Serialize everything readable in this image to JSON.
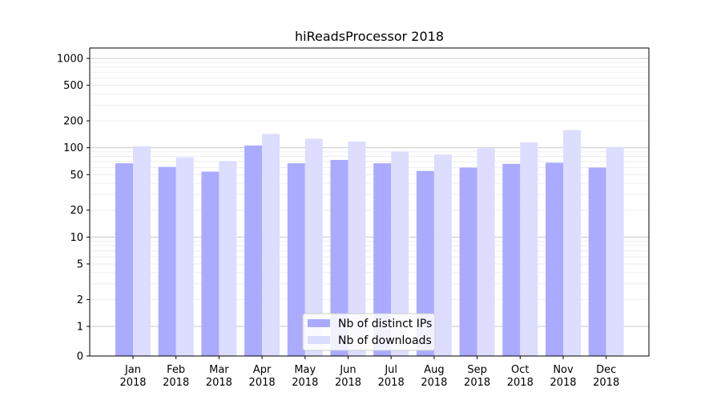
{
  "chart_data": {
    "type": "bar",
    "title": "hiReadsProcessor 2018",
    "xlabel": "",
    "ylabel": "",
    "y_scale": "symlog",
    "ylim": [
      0,
      1200
    ],
    "categories": [
      [
        "Jan",
        "2018"
      ],
      [
        "Feb",
        "2018"
      ],
      [
        "Mar",
        "2018"
      ],
      [
        "Apr",
        "2018"
      ],
      [
        "May",
        "2018"
      ],
      [
        "Jun",
        "2018"
      ],
      [
        "Jul",
        "2018"
      ],
      [
        "Aug",
        "2018"
      ],
      [
        "Sep",
        "2018"
      ],
      [
        "Oct",
        "2018"
      ],
      [
        "Nov",
        "2018"
      ],
      [
        "Dec",
        "2018"
      ]
    ],
    "y_ticks": [
      0,
      1,
      2,
      5,
      10,
      20,
      50,
      100,
      200,
      500,
      1000
    ],
    "y_tick_labels": [
      "0",
      "1",
      "2",
      "5",
      "10",
      "20",
      "50",
      "100",
      "200",
      "500",
      "1000"
    ],
    "series": [
      {
        "name": "Nb of distinct IPs",
        "color": "#aaaaff",
        "values": [
          67,
          61,
          54,
          106,
          67,
          73,
          67,
          55,
          60,
          66,
          68,
          60
        ]
      },
      {
        "name": "Nb of downloads",
        "color": "#ddddff",
        "values": [
          104,
          78,
          71,
          143,
          126,
          117,
          91,
          84,
          100,
          115,
          158,
          102
        ]
      }
    ],
    "grid": true,
    "legend_position": "bottom-center"
  }
}
